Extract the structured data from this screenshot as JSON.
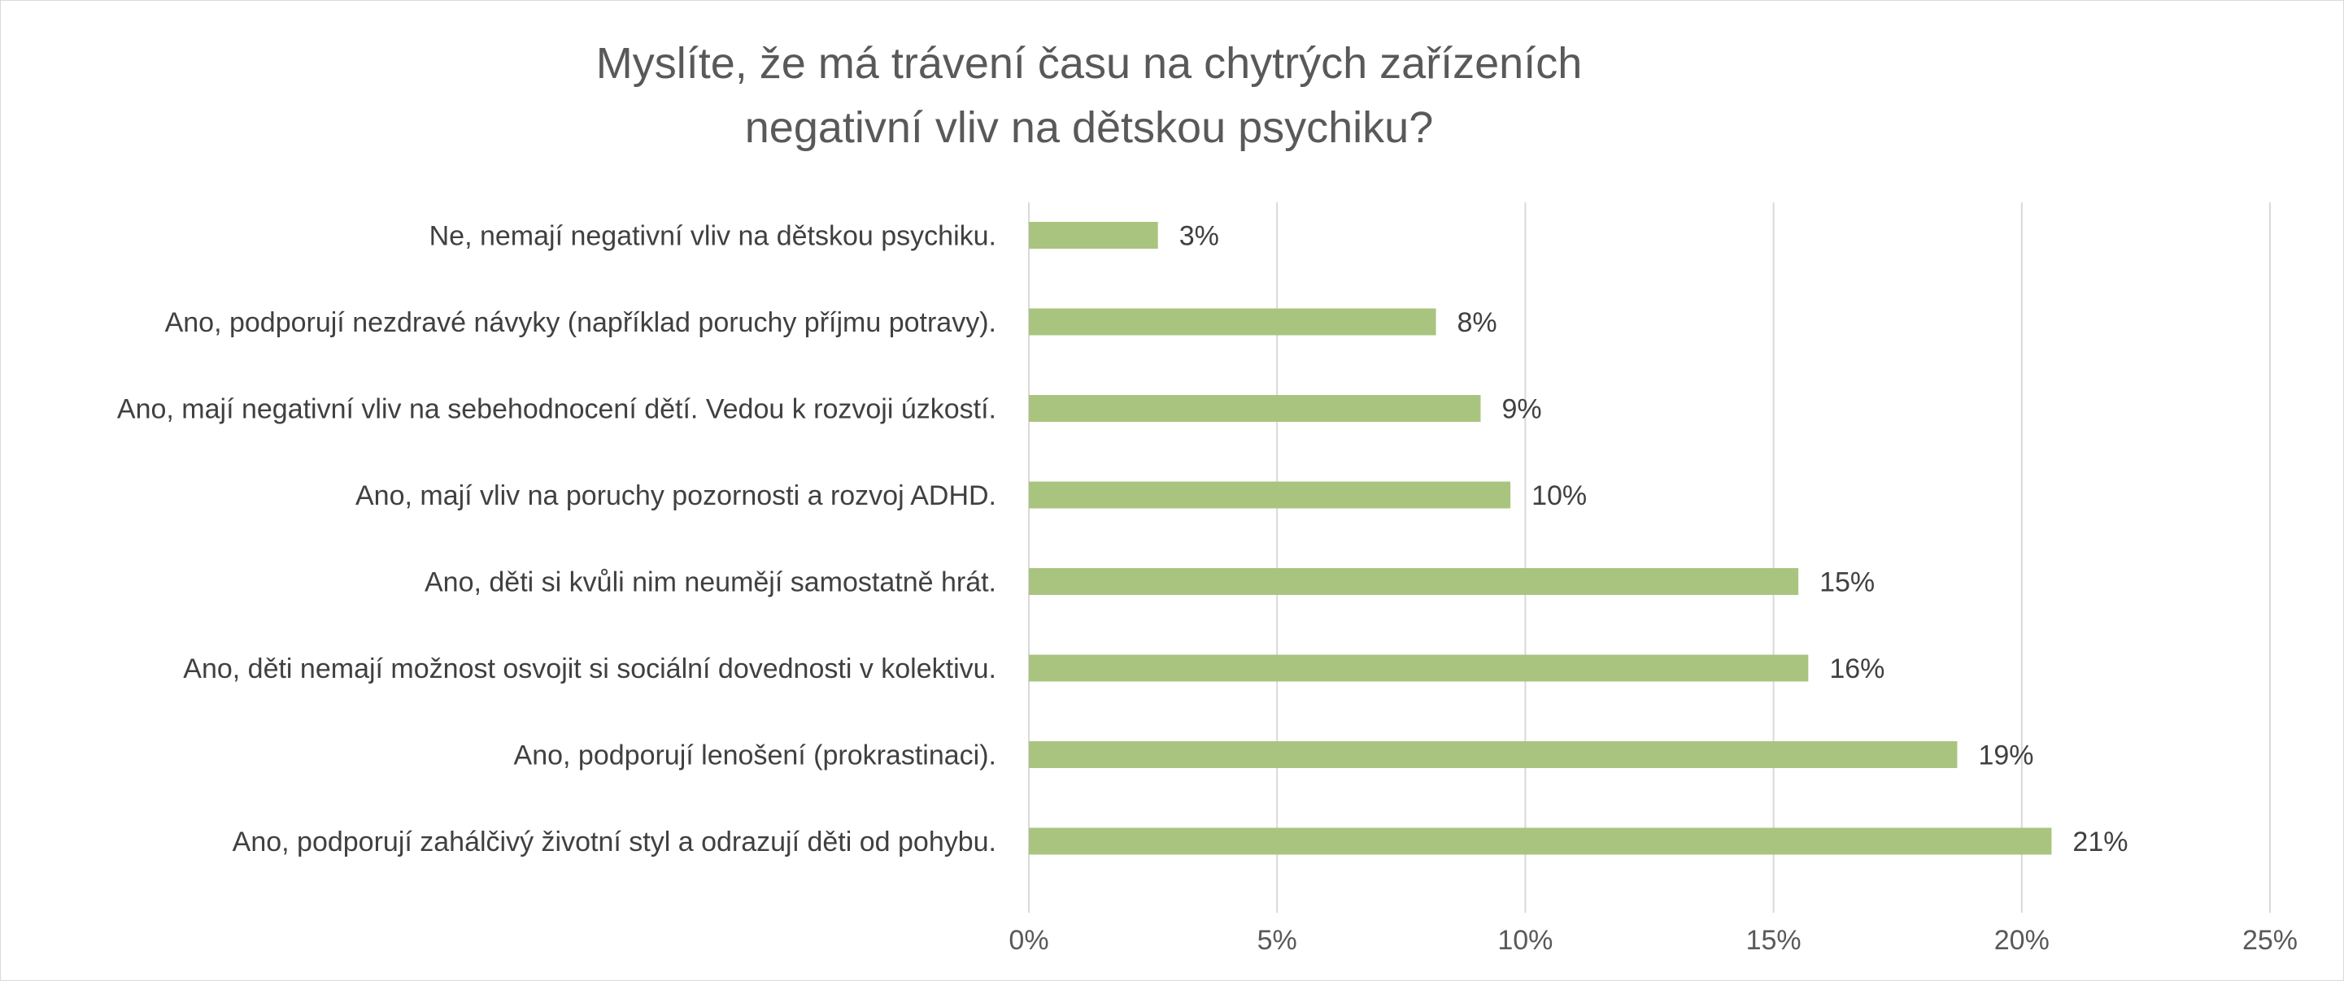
{
  "chart_data": {
    "type": "bar",
    "orientation": "horizontal",
    "title": [
      "Myslíte, že má trávení času na chytrých zařízeních",
      "negativní vliv na dětskou psychiku?"
    ],
    "categories": [
      "Ne, nemají negativní vliv na dětskou psychiku.",
      "Ano, podporují nezdravé návyky (například poruchy příjmu potravy).",
      "Ano, mají negativní vliv na sebehodnocení dětí. Vedou k rozvoji úzkostí.",
      "Ano, mají vliv na poruchy pozornosti a rozvoj ADHD.",
      "Ano, děti si kvůli nim neumějí samostatně hrát.",
      "Ano, děti nemají možnost osvojit si sociální dovednosti v kolektivu.",
      "Ano, podporují lenošení (prokrastinaci).",
      "Ano, podporují zahálčivý životní styl a odrazují děti od pohybu."
    ],
    "values": [
      2.6,
      8.2,
      9.1,
      9.7,
      15.5,
      15.7,
      18.7,
      20.6
    ],
    "data_labels": [
      "3%",
      "8%",
      "9%",
      "10%",
      "15%",
      "16%",
      "19%",
      "21%"
    ],
    "xlim": [
      0,
      25
    ],
    "x_ticks": [
      "0%",
      "5%",
      "10%",
      "15%",
      "20%",
      "25%"
    ],
    "xlabel": "",
    "ylabel": "",
    "grid": true,
    "legend": "none",
    "bar_color": "#A9C47F"
  }
}
